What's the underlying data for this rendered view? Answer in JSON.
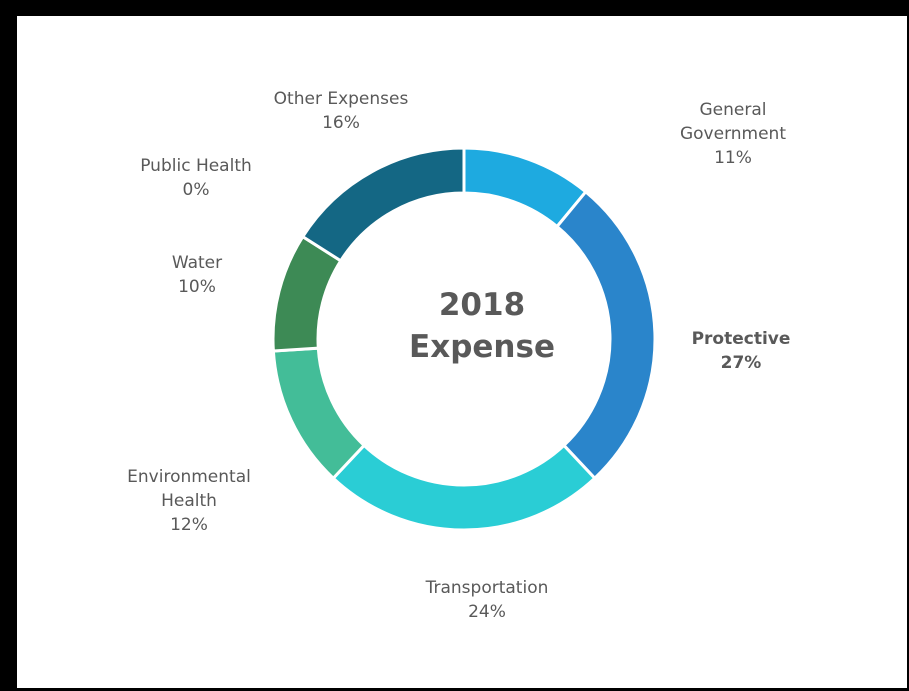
{
  "chart_data": {
    "type": "pie",
    "style": "donut",
    "title_lines": [
      "2018",
      "Expense"
    ],
    "slices": [
      {
        "name": "General Government",
        "label_lines": [
          "General",
          "Government"
        ],
        "value": 11,
        "pct_label": "11%",
        "color": "#1EAAE0",
        "bold": false
      },
      {
        "name": "Protective",
        "label_lines": [
          "Protective"
        ],
        "value": 27,
        "pct_label": "27%",
        "color": "#2A85CB",
        "bold": true
      },
      {
        "name": "Transportation",
        "label_lines": [
          "Transportation"
        ],
        "value": 24,
        "pct_label": "24%",
        "color": "#2ACDD5",
        "bold": false
      },
      {
        "name": "Environmental Health",
        "label_lines": [
          "Environmental",
          "Health"
        ],
        "value": 12,
        "pct_label": "12%",
        "color": "#43BD98",
        "bold": false
      },
      {
        "name": "Water",
        "label_lines": [
          "Water"
        ],
        "value": 10,
        "pct_label": "10%",
        "color": "#3D8A55",
        "bold": false
      },
      {
        "name": "Public Health",
        "label_lines": [
          "Public Health"
        ],
        "value": 0,
        "pct_label": "0%",
        "color": "#2E7A6A",
        "bold": false
      },
      {
        "name": "Other Expenses",
        "label_lines": [
          "Other Expenses"
        ],
        "value": 16,
        "pct_label": "16%",
        "color": "#146784",
        "bold": false
      }
    ]
  }
}
